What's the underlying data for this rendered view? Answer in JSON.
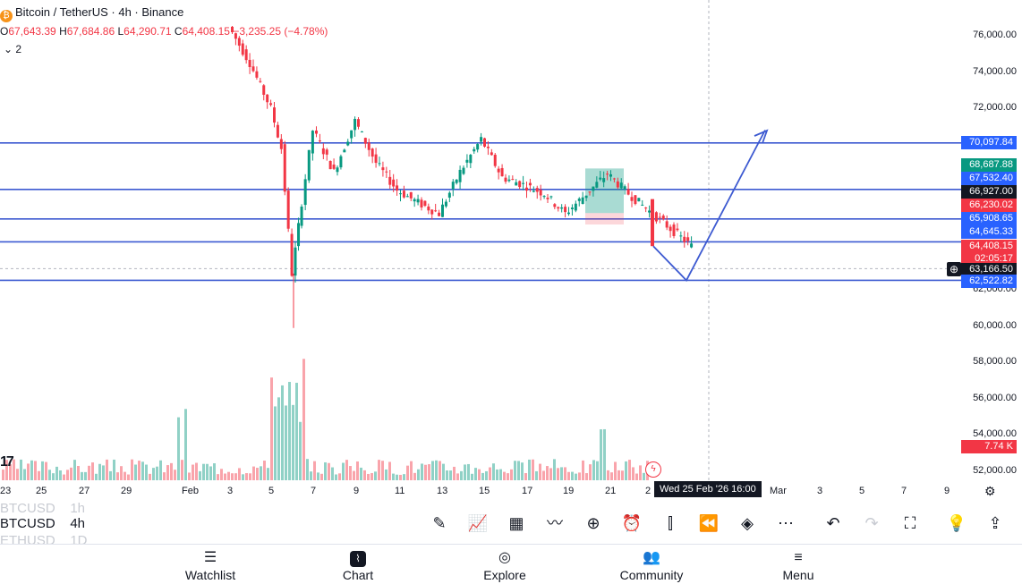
{
  "header": {
    "symbol_title": "Bitcoin / TetherUS · 4h · Binance",
    "ohlc": {
      "open_label": "O",
      "open": "67,643.39",
      "high_label": "H",
      "high": "67,684.86",
      "low_label": "L",
      "low": "64,290.71",
      "close_label": "C",
      "close": "64,408.15",
      "change": "−3,235.25 (−4.78%)"
    },
    "indicator_toggle": "2"
  },
  "price_axis": {
    "ticks": [
      "76,000.00",
      "74,000.00",
      "72,000.00",
      "70,000.00",
      "68,000.00",
      "66,000.00",
      "64,000.00",
      "62,000.00",
      "60,000.00",
      "58,000.00",
      "56,000.00",
      "54,000.00",
      "52,000.00"
    ],
    "tags": [
      {
        "label": "70,097.84",
        "color": "#2962ff"
      },
      {
        "label": "68,687.88",
        "color": "#089981"
      },
      {
        "label": "67,532.40",
        "color": "#2962ff"
      },
      {
        "label": "66,927.00",
        "color": "#131722"
      },
      {
        "label": "66,230.02",
        "color": "#f23645"
      },
      {
        "label": "65,908.65",
        "color": "#2962ff"
      },
      {
        "label": "64,645.33",
        "color": "#2962ff"
      },
      {
        "label": "64,408.15",
        "color": "#f23645"
      },
      {
        "label": "02:05:17",
        "color": "#f23645"
      },
      {
        "label": "63,166.50",
        "color": "#131722"
      },
      {
        "label": "62,522.82",
        "color": "#2962ff"
      },
      {
        "label": "7.74 K",
        "color": "#f23645"
      }
    ]
  },
  "time_axis": {
    "labels": [
      "23",
      "25",
      "27",
      "29",
      "Feb",
      "3",
      "5",
      "7",
      "9",
      "11",
      "13",
      "15",
      "17",
      "19",
      "21",
      "2",
      "Mar",
      "3",
      "5",
      "7",
      "9"
    ],
    "crosshair_label": "Wed 25 Feb '26   16:00"
  },
  "symbols": [
    {
      "name": "BTCUSD",
      "interval": "1h",
      "faded": true
    },
    {
      "name": "BTCUSD",
      "interval": "4h",
      "faded": false
    },
    {
      "name": "ETHUSD",
      "interval": "1D",
      "faded": true
    }
  ],
  "toolbar_icons": [
    "pencil-icon",
    "indicators-icon",
    "templates-icon",
    "trend-line-icon",
    "add-icon",
    "alert-icon",
    "candle-type-icon",
    "replay-icon",
    "layers-icon",
    "more-icon",
    "undo-icon",
    "redo-icon",
    "fullscreen-icon",
    "idea-icon",
    "share-icon"
  ],
  "nav": [
    {
      "label": "Watchlist",
      "icon": "watchlist-icon"
    },
    {
      "label": "Chart",
      "icon": "chart-icon"
    },
    {
      "label": "Explore",
      "icon": "explore-icon"
    },
    {
      "label": "Community",
      "icon": "community-icon"
    },
    {
      "label": "Menu",
      "icon": "menu-icon"
    }
  ],
  "chart_data": {
    "type": "candlestick",
    "title": "Bitcoin / TetherUS · 4h · Binance",
    "ylim": [
      51500,
      77000
    ],
    "horizontal_levels": [
      70097.84,
      67532.4,
      65908.65,
      64645.33,
      62522.82
    ],
    "current_price": 64408.15,
    "crosshair_price": 63166.5,
    "long_position": {
      "entry": 66230.02,
      "target": 68687.88,
      "stop": 65600
    },
    "projection_path": [
      {
        "t": "Feb 25",
        "y": 64408.15
      },
      {
        "t": "Feb 26",
        "y": 62522.82
      },
      {
        "t": "Mar 1",
        "y": 70800
      }
    ],
    "price_path": [
      {
        "t": "Feb 3",
        "y": 76500
      },
      {
        "t": "Feb 4",
        "y": 74500
      },
      {
        "t": "Feb 5",
        "y": 72000
      },
      {
        "t": "Feb 5.5",
        "y": 69800
      },
      {
        "t": "Feb 6",
        "y": 62900
      },
      {
        "t": "Feb 6.3",
        "y": 65500
      },
      {
        "t": "Feb 7",
        "y": 70800
      },
      {
        "t": "Feb 8",
        "y": 68500
      },
      {
        "t": "Feb 9",
        "y": 71300
      },
      {
        "t": "Feb 10",
        "y": 69000
      },
      {
        "t": "Feb 11",
        "y": 67500
      },
      {
        "t": "Feb 12",
        "y": 66800
      },
      {
        "t": "Feb 13",
        "y": 66200
      },
      {
        "t": "Feb 14",
        "y": 68500
      },
      {
        "t": "Feb 15",
        "y": 70300
      },
      {
        "t": "Feb 16",
        "y": 68200
      },
      {
        "t": "Feb 17",
        "y": 67800
      },
      {
        "t": "Feb 18",
        "y": 67300
      },
      {
        "t": "Feb 19",
        "y": 66200
      },
      {
        "t": "Feb 20",
        "y": 67300
      },
      {
        "t": "Feb 21",
        "y": 68400
      },
      {
        "t": "Feb 22",
        "y": 67300
      },
      {
        "t": "Feb 25",
        "y": 64408
      }
    ],
    "volume_last": "7.74 K"
  }
}
